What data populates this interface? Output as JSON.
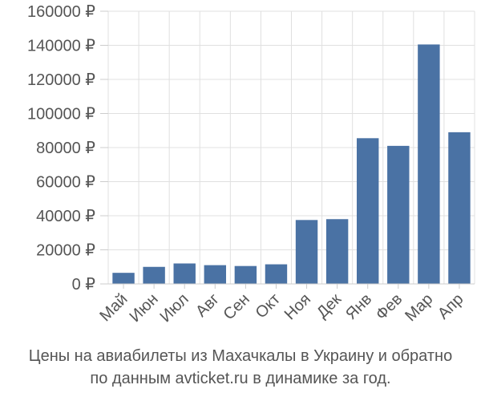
{
  "chart_data": {
    "type": "bar",
    "categories": [
      "Май",
      "Июн",
      "Июл",
      "Авг",
      "Сен",
      "Окт",
      "Ноя",
      "Дек",
      "Янв",
      "Фев",
      "Мар",
      "Апр"
    ],
    "values": [
      6500,
      10000,
      12000,
      11000,
      10500,
      11500,
      37500,
      38000,
      85500,
      81000,
      140500,
      89000
    ],
    "ylim": [
      0,
      160000
    ],
    "yticks": [
      0,
      20000,
      40000,
      60000,
      80000,
      100000,
      120000,
      140000,
      160000
    ],
    "currency_suffix": " ₽",
    "bar_color": "#4a72a4",
    "grid_color": "#e0e0e0",
    "grid": true
  },
  "caption": {
    "line1": "Цены на авиабилеты из Махачкалы в Украину и обратно",
    "line2": "по данным avticket.ru в динамике за год."
  }
}
